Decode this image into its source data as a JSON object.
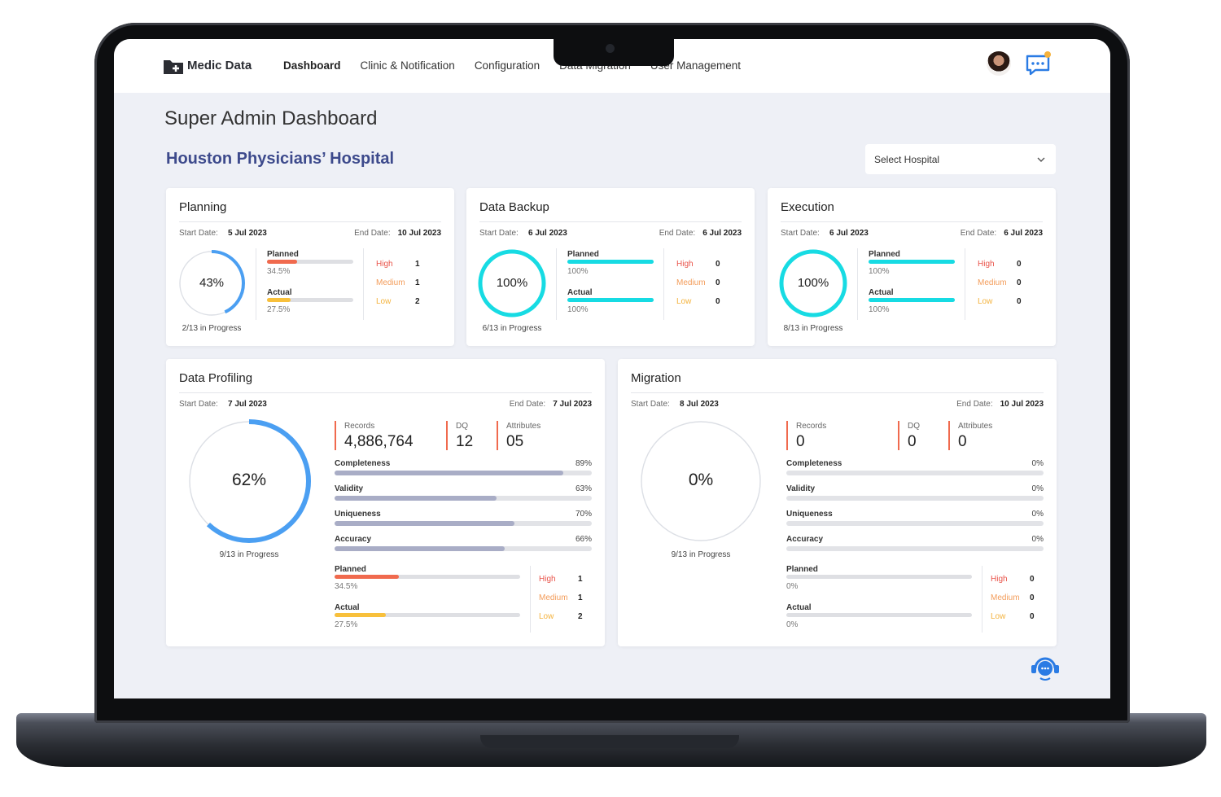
{
  "nav": {
    "brand": "Medic Data",
    "items": [
      "Dashboard",
      "Clinic & Notification",
      "Configuration",
      "Data Migration",
      "User Management"
    ]
  },
  "page": {
    "title": "Super Admin Dashboard",
    "hospital": "Houston Physicians’ Hospital",
    "select": "Select Hospital"
  },
  "stage_cards": [
    {
      "title": "Planning",
      "start_label": "Start Date:",
      "start": "5 Jul 2023",
      "end_label": "End Date:",
      "end": "10 Jul 2023",
      "progress": {
        "value": 43,
        "label": "43%"
      },
      "status": "2/13 in Progress",
      "planned": {
        "label": "Planned",
        "value": 34.5,
        "value_label": "34.5%"
      },
      "actual": {
        "label": "Actual",
        "value": 27.5,
        "value_label": "27.5%"
      },
      "priorities": [
        {
          "label": "High",
          "value": 1
        },
        {
          "label": "Medium",
          "value": 1
        },
        {
          "label": "Low",
          "value": 2
        }
      ]
    },
    {
      "title": "Data Backup",
      "start_label": "Start Date:",
      "start": "6 Jul 2023",
      "end_label": "End Date:",
      "end": "6 Jul 2023",
      "progress": {
        "value": 100,
        "label": "100%"
      },
      "status": "6/13 in Progress",
      "planned": {
        "label": "Planned",
        "value": 100,
        "value_label": "100%"
      },
      "actual": {
        "label": "Actual",
        "value": 100,
        "value_label": "100%"
      },
      "priorities": [
        {
          "label": "High",
          "value": 0
        },
        {
          "label": "Medium",
          "value": 0
        },
        {
          "label": "Low",
          "value": 0
        }
      ]
    },
    {
      "title": "Execution",
      "start_label": "Start Date:",
      "start": "6 Jul 2023",
      "end_label": "End Date:",
      "end": "6 Jul 2023",
      "progress": {
        "value": 100,
        "label": "100%"
      },
      "status": "8/13 in Progress",
      "planned": {
        "label": "Planned",
        "value": 100,
        "value_label": "100%"
      },
      "actual": {
        "label": "Actual",
        "value": 100,
        "value_label": "100%"
      },
      "priorities": [
        {
          "label": "High",
          "value": 0
        },
        {
          "label": "Medium",
          "value": 0
        },
        {
          "label": "Low",
          "value": 0
        }
      ]
    }
  ],
  "detail_cards": [
    {
      "title": "Data Profiling",
      "start_label": "Start Date:",
      "start": "7 Jul 2023",
      "end_label": "End Date:",
      "end": "7 Jul 2023",
      "progress": {
        "value": 62,
        "label": "62%"
      },
      "status": "9/13 in Progress",
      "metrics": [
        {
          "label": "Records",
          "value": 4886764,
          "value_label": "4,886,764"
        },
        {
          "label": "DQ",
          "value": 12
        },
        {
          "label": "Attributes",
          "value": 5,
          "value_label": "05"
        }
      ],
      "quality": [
        {
          "label": "Completeness",
          "value": 89,
          "value_label": "89%"
        },
        {
          "label": "Validity",
          "value": 63,
          "value_label": "63%"
        },
        {
          "label": "Uniqueness",
          "value": 70,
          "value_label": "70%"
        },
        {
          "label": "Accuracy",
          "value": 66,
          "value_label": "66%"
        }
      ],
      "planned": {
        "label": "Planned",
        "value": 34.5,
        "value_label": "34.5%"
      },
      "actual": {
        "label": "Actual",
        "value": 27.5,
        "value_label": "27.5%"
      },
      "priorities": [
        {
          "label": "High",
          "value": 1
        },
        {
          "label": "Medium",
          "value": 1
        },
        {
          "label": "Low",
          "value": 2
        }
      ]
    },
    {
      "title": "Migration",
      "start_label": "Start Date:",
      "start": "8 Jul 2023",
      "end_label": "End Date:",
      "end": "10 Jul 2023",
      "progress": {
        "value": 0,
        "label": "0%"
      },
      "status": "9/13 in Progress",
      "metrics": [
        {
          "label": "Records",
          "value": 0
        },
        {
          "label": "DQ",
          "value": 0
        },
        {
          "label": "Attributes",
          "value": 0
        }
      ],
      "quality": [
        {
          "label": "Completeness",
          "value": 0,
          "value_label": "0%"
        },
        {
          "label": "Validity",
          "value": 0,
          "value_label": "0%"
        },
        {
          "label": "Uniqueness",
          "value": 0,
          "value_label": "0%"
        },
        {
          "label": "Accuracy",
          "value": 0,
          "value_label": "0%"
        }
      ],
      "planned": {
        "label": "Planned",
        "value": 0,
        "value_label": "0%"
      },
      "actual": {
        "label": "Actual",
        "value": 0,
        "value_label": "0%"
      },
      "priorities": [
        {
          "label": "High",
          "value": 0
        },
        {
          "label": "Medium",
          "value": 0
        },
        {
          "label": "Low",
          "value": 0
        }
      ]
    }
  ]
}
